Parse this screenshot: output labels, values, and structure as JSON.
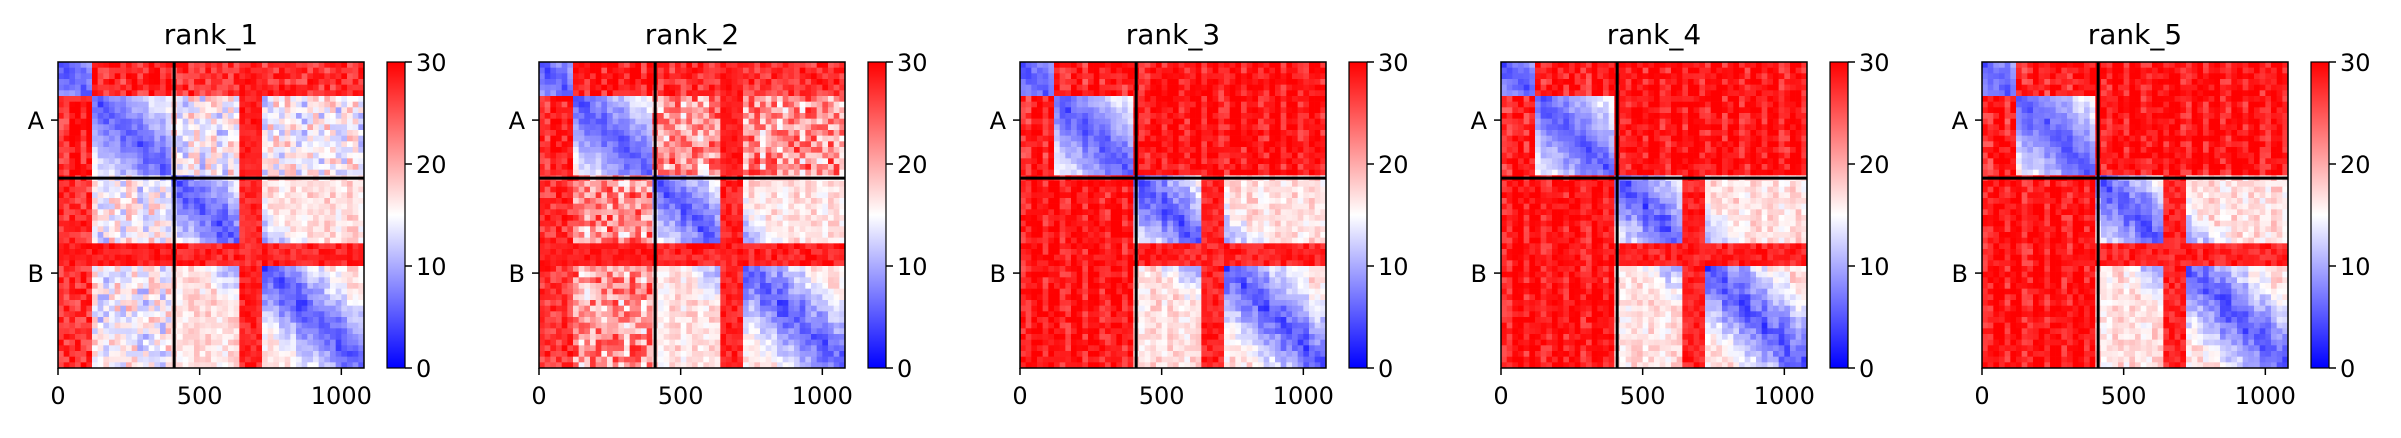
{
  "chart_data": [
    {
      "type": "heatmap",
      "title": "rank_1",
      "xlim": [
        0,
        1080
      ],
      "x_ticks": [
        0,
        500,
        1000
      ],
      "row_labels": [
        "A",
        "B"
      ],
      "chain_boundary": 410,
      "length": 1080,
      "colorbar": {
        "min": 0,
        "max": 30,
        "ticks": [
          0,
          10,
          20,
          30
        ]
      },
      "inter_chain": "mixed",
      "intra_a": "partly_red",
      "intra_b": "mixed"
    },
    {
      "type": "heatmap",
      "title": "rank_2",
      "xlim": [
        0,
        1080
      ],
      "x_ticks": [
        0,
        500,
        1000
      ],
      "row_labels": [
        "A",
        "B"
      ],
      "chain_boundary": 410,
      "length": 1080,
      "colorbar": {
        "min": 0,
        "max": 30,
        "ticks": [
          0,
          10,
          20,
          30
        ]
      },
      "inter_chain": "mixed_red",
      "intra_a": "partly_red",
      "intra_b": "mixed"
    },
    {
      "type": "heatmap",
      "title": "rank_3",
      "xlim": [
        0,
        1080
      ],
      "x_ticks": [
        0,
        500,
        1000
      ],
      "row_labels": [
        "A",
        "B"
      ],
      "chain_boundary": 410,
      "length": 1080,
      "colorbar": {
        "min": 0,
        "max": 30,
        "ticks": [
          0,
          10,
          20,
          30
        ]
      },
      "inter_chain": "red",
      "intra_a": "partly_red",
      "intra_b": "mixed"
    },
    {
      "type": "heatmap",
      "title": "rank_4",
      "xlim": [
        0,
        1080
      ],
      "x_ticks": [
        0,
        500,
        1000
      ],
      "row_labels": [
        "A",
        "B"
      ],
      "chain_boundary": 410,
      "length": 1080,
      "colorbar": {
        "min": 0,
        "max": 30,
        "ticks": [
          0,
          10,
          20,
          30
        ]
      },
      "inter_chain": "red",
      "intra_a": "partly_red",
      "intra_b": "mixed"
    },
    {
      "type": "heatmap",
      "title": "rank_5",
      "xlim": [
        0,
        1080
      ],
      "x_ticks": [
        0,
        500,
        1000
      ],
      "row_labels": [
        "A",
        "B"
      ],
      "chain_boundary": 410,
      "length": 1080,
      "colorbar": {
        "min": 0,
        "max": 30,
        "ticks": [
          0,
          10,
          20,
          30
        ]
      },
      "inter_chain": "red",
      "intra_a": "partly_red",
      "intra_b": "mixed"
    }
  ],
  "colors": {
    "low": "#0000ff",
    "mid": "#ffffff",
    "high": "#ff0000"
  }
}
